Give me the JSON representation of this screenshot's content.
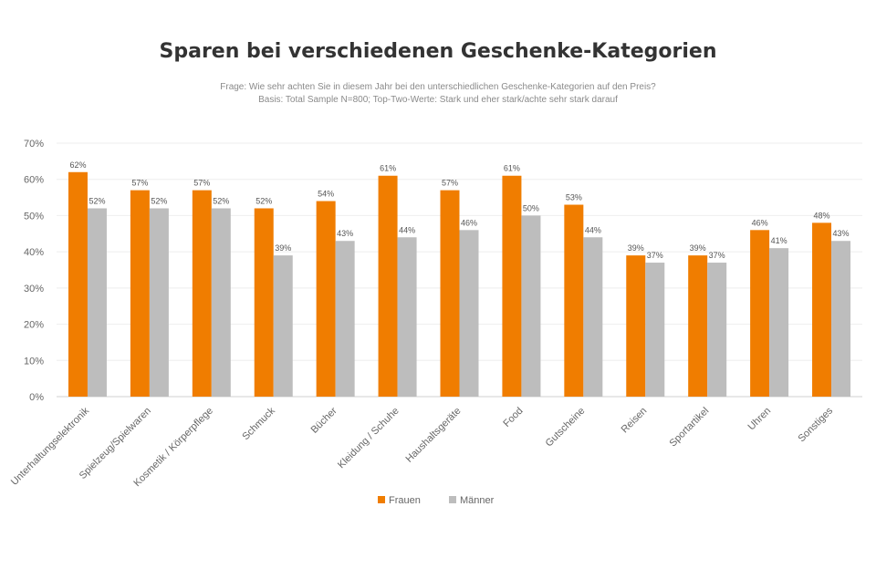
{
  "chart_data": {
    "type": "bar",
    "title": "Sparen bei verschiedenen Geschenke-Kategorien",
    "subtitle_line1": "Frage: Wie sehr achten Sie in diesem Jahr bei den unterschiedlichen Geschenke-Kategorien auf den Preis?",
    "subtitle_line2": "Basis: Total Sample N=800; Top-Two-Werte: Stark und eher stark/achte sehr stark darauf",
    "categories": [
      "Unterhaltungselektronik",
      "Spielzeug/Spielwaren",
      "Kosmetik / Körperpflege",
      "Schmuck",
      "Bücher",
      "Kleidung / Schuhe",
      "Haushaltsgeräte",
      "Food",
      "Gutscheine",
      "Reisen",
      "Sportartikel",
      "Uhren",
      "Sonstiges"
    ],
    "series": [
      {
        "name": "Frauen",
        "color": "#F07D00",
        "values": [
          62,
          57,
          57,
          52,
          54,
          61,
          57,
          61,
          53,
          39,
          39,
          46,
          48
        ]
      },
      {
        "name": "Männer",
        "color": "#BDBDBD",
        "values": [
          52,
          52,
          52,
          39,
          43,
          44,
          46,
          50,
          44,
          37,
          37,
          41,
          43
        ]
      }
    ],
    "ylim": [
      0,
      70
    ],
    "yticks": [
      "0%",
      "10%",
      "20%",
      "30%",
      "40%",
      "50%",
      "60%",
      "70%"
    ],
    "value_suffix": "%",
    "grid": true,
    "legend_position": "bottom"
  }
}
